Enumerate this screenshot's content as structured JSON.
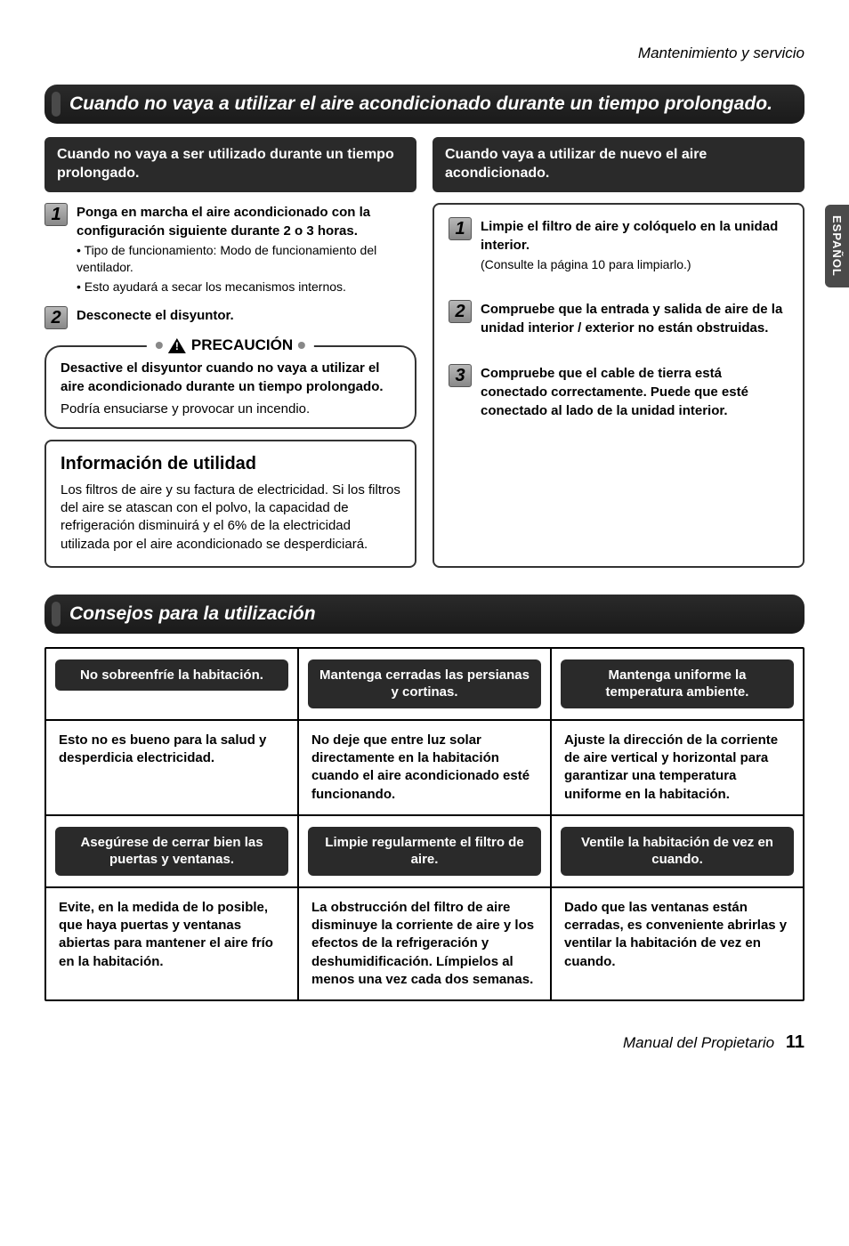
{
  "header": {
    "section": "Mantenimiento y servicio"
  },
  "sideTab": "ESPAÑOL",
  "mainTitle": "Cuando no vaya a utilizar el aire acondicionado durante un tiempo prolongado.",
  "left": {
    "header": "Cuando no vaya a ser utilizado durante un tiempo prolongado.",
    "step1": {
      "num": "1",
      "title": "Ponga en marcha el aire acondicionado con la configuración siguiente durante 2 o 3 horas.",
      "b1": "• Tipo de funcionamiento: Modo de funcionamiento del ventilador.",
      "b2": "• Esto ayudará a secar los mecanismos internos."
    },
    "step2": {
      "num": "2",
      "title": "Desconecte el disyuntor."
    },
    "caution": {
      "label": "PRECAUCIÓN",
      "text": "Desactive el disyuntor cuando no vaya a utilizar el aire acondicionado durante un tiempo prolongado.",
      "note": "Podría ensuciarse y provocar un incendio."
    },
    "info": {
      "title": "Información de utilidad",
      "text": "Los filtros de aire y su factura de electricidad. Si los filtros del aire se atascan con el polvo, la capacidad de refrigeración disminuirá y el 6% de la electricidad utilizada por el aire acondicionado se desperdiciará."
    }
  },
  "right": {
    "header": "Cuando vaya a utilizar de nuevo el aire acondicionado.",
    "step1": {
      "num": "1",
      "title": "Limpie el filtro de aire y colóquelo en la unidad interior.",
      "sub": "(Consulte la página 10 para limpiarlo.)"
    },
    "step2": {
      "num": "2",
      "title": "Compruebe que la entrada y salida de aire de la unidad interior / exterior no están obstruidas."
    },
    "step3": {
      "num": "3",
      "title": "Compruebe que el cable de tierra está conectado correctamente. Puede que esté conectado al lado de la unidad interior."
    }
  },
  "tipsTitle": "Consejos para la utilización",
  "tips": {
    "h1": "No sobreenfríe la habitación.",
    "h2": "Mantenga cerradas las persianas y cortinas.",
    "h3": "Mantenga uniforme la temperatura ambiente.",
    "b1": "Esto no es bueno para la salud y desperdicia electricidad.",
    "b2": "No deje que entre luz solar directamente en la habitación cuando el aire acondicionado esté funcionando.",
    "b3": "Ajuste la dirección de la corriente de aire vertical y horizontal para garantizar una temperatura uniforme en la habitación.",
    "h4": "Asegúrese de cerrar bien las puertas y ventanas.",
    "h5": "Limpie regularmente el filtro de aire.",
    "h6": "Ventile la habitación de vez en cuando.",
    "b4": "Evite, en la medida de lo posible, que haya puertas y ventanas abiertas para mantener el aire frío en la habitación.",
    "b5": "La obstrucción del filtro de aire disminuye la corriente de aire y los efectos de la refrigeración y deshumidificación. Límpielos al menos una vez cada dos semanas.",
    "b6": "Dado que las ventanas están cerradas, es conveniente abrirlas y ventilar la habitación de vez en cuando."
  },
  "footer": {
    "label": "Manual del Propietario",
    "page": "11"
  }
}
